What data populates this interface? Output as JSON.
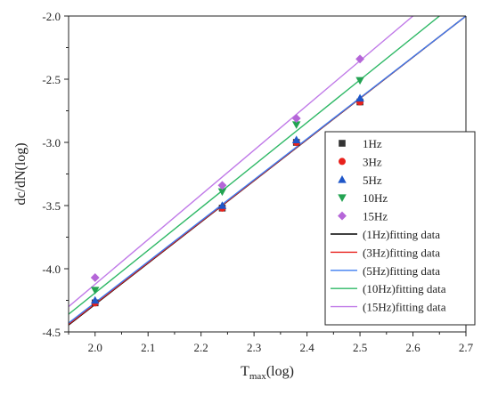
{
  "chart_data": {
    "type": "scatter",
    "xlabel_main": "T",
    "xlabel_sub": "max",
    "xlabel_suffix": "(log)",
    "ylabel": "dc/dN(log)",
    "xlim": [
      1.95,
      2.7
    ],
    "ylim": [
      -4.5,
      -2.0
    ],
    "x_ticks": [
      2.0,
      2.1,
      2.2,
      2.3,
      2.4,
      2.5,
      2.6,
      2.7
    ],
    "x_tick_labels": [
      "2.0",
      "2.1",
      "2.2",
      "2.3",
      "2.4",
      "2.5",
      "2.6",
      "2.7"
    ],
    "y_ticks": [
      -4.5,
      -4.0,
      -3.5,
      -3.0,
      -2.5,
      -2.0
    ],
    "y_tick_labels": [
      "-4.5",
      "-4.0",
      "-3.5",
      "-3.0",
      "-2.5",
      "-2.0"
    ],
    "grid": false,
    "legend_position": "right",
    "series": [
      {
        "name": "1Hz",
        "marker": "square",
        "color": "#333333",
        "points": [
          [
            2.0,
            -4.27
          ],
          [
            2.24,
            -3.52
          ],
          [
            2.38,
            -3.0
          ],
          [
            2.5,
            -2.68
          ]
        ]
      },
      {
        "name": "3Hz",
        "marker": "circle",
        "color": "#e8211c",
        "points": [
          [
            2.0,
            -4.27
          ],
          [
            2.24,
            -3.52
          ],
          [
            2.38,
            -3.0
          ],
          [
            2.5,
            -2.68
          ]
        ]
      },
      {
        "name": "5Hz",
        "marker": "triangle-up",
        "color": "#1e56c8",
        "points": [
          [
            2.0,
            -4.25
          ],
          [
            2.24,
            -3.5
          ],
          [
            2.38,
            -2.98
          ],
          [
            2.5,
            -2.65
          ]
        ]
      },
      {
        "name": "10Hz",
        "marker": "triangle-down",
        "color": "#23a352",
        "points": [
          [
            2.0,
            -4.17
          ],
          [
            2.24,
            -3.39
          ],
          [
            2.38,
            -2.86
          ],
          [
            2.5,
            -2.51
          ]
        ]
      },
      {
        "name": "15Hz",
        "marker": "diamond",
        "color": "#b566d8",
        "points": [
          [
            2.0,
            -4.07
          ],
          [
            2.24,
            -3.34
          ],
          [
            2.38,
            -2.81
          ],
          [
            2.5,
            -2.34
          ]
        ]
      }
    ],
    "fits": [
      {
        "name": "(1Hz)fitting data",
        "color": "#000000",
        "x": [
          1.95,
          2.7
        ],
        "y": [
          -4.445,
          -2.0
        ]
      },
      {
        "name": "(3Hz)fitting data",
        "color": "#e8211c",
        "x": [
          1.95,
          2.7
        ],
        "y": [
          -4.44,
          -2.0
        ]
      },
      {
        "name": "(5Hz)fitting data",
        "color": "#3c7df0",
        "x": [
          1.95,
          2.7
        ],
        "y": [
          -4.43,
          -2.0
        ]
      },
      {
        "name": "(10Hz)fitting data",
        "color": "#2db865",
        "x": [
          1.95,
          2.65
        ],
        "y": [
          -4.36,
          -2.0
        ]
      },
      {
        "name": "(15Hz)fitting data",
        "color": "#c07ae8",
        "x": [
          1.95,
          2.6
        ],
        "y": [
          -4.3,
          -2.0
        ]
      }
    ]
  }
}
